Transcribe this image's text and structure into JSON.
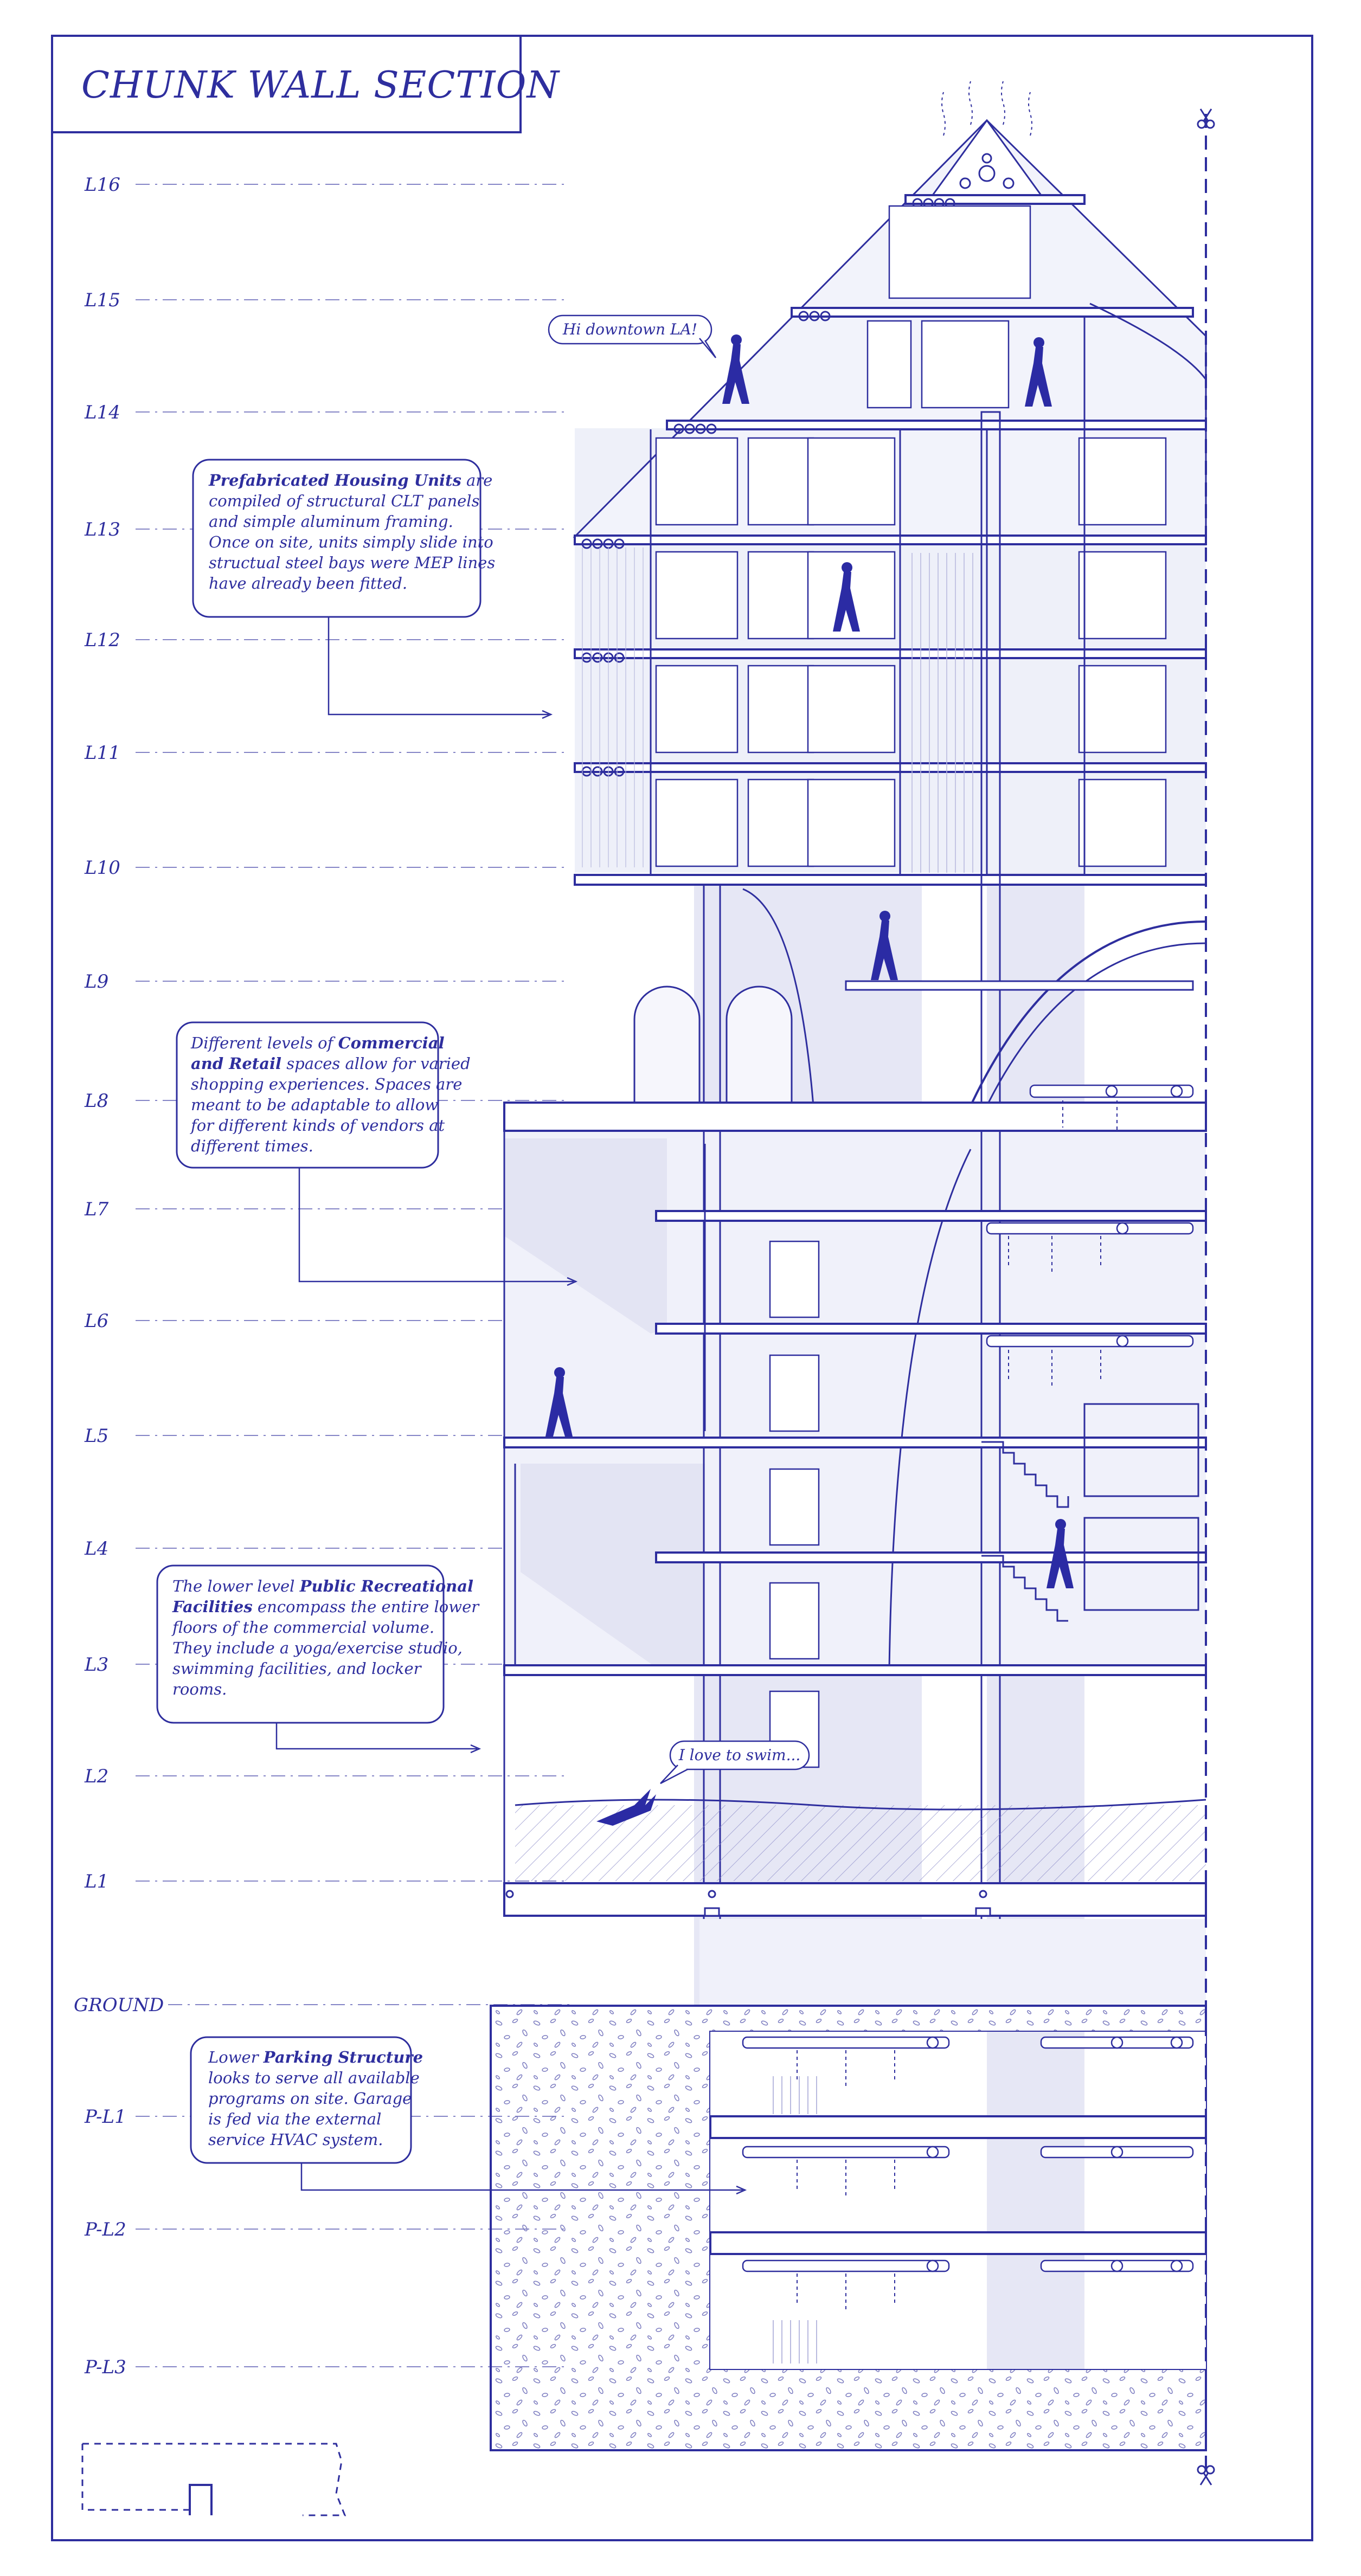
{
  "title": "CHUNK WALL SECTION",
  "colors": {
    "ink": "#2e2e9e",
    "ink_dark": "#2b2ba4",
    "wash": "#e6e7f5",
    "wash_dark": "#d4d6ee",
    "paper": "#ffffff"
  },
  "levels": [
    "L16",
    "L15",
    "L14",
    "L13",
    "L12",
    "L11",
    "L10",
    "L9",
    "L8",
    "L7",
    "L6",
    "L5",
    "L4",
    "L3",
    "L2",
    "L1",
    "GROUND",
    "P-L1",
    "P-L2",
    "P-L3"
  ],
  "notes": {
    "housing": {
      "lines": [
        [
          {
            "t": "Prefabricated Housing Units",
            "b": true
          },
          {
            "t": " are",
            "b": false
          }
        ],
        [
          {
            "t": "compiled of structural CLT panels",
            "b": false
          }
        ],
        [
          {
            "t": "and simple aluminum framing.",
            "b": false
          }
        ],
        [
          {
            "t": "Once on site, units simply slide into",
            "b": false
          }
        ],
        [
          {
            "t": "structual steel bays were MEP lines",
            "b": false
          }
        ],
        [
          {
            "t": "have already been fitted.",
            "b": false
          }
        ]
      ]
    },
    "commercial": {
      "lines": [
        [
          {
            "t": "Different levels of ",
            "b": false
          },
          {
            "t": "Commercial",
            "b": true
          }
        ],
        [
          {
            "t": "and Retail",
            "b": true
          },
          {
            "t": " spaces allow for varied",
            "b": false
          }
        ],
        [
          {
            "t": "shopping experiences. Spaces are",
            "b": false
          }
        ],
        [
          {
            "t": "meant to be adaptable to allow",
            "b": false
          }
        ],
        [
          {
            "t": "for different kinds of vendors at",
            "b": false
          }
        ],
        [
          {
            "t": "different times.",
            "b": false
          }
        ]
      ]
    },
    "recreation": {
      "lines": [
        [
          {
            "t": "The lower level ",
            "b": false
          },
          {
            "t": "Public Recreational",
            "b": true
          }
        ],
        [
          {
            "t": "Facilities",
            "b": true
          },
          {
            "t": " encompass the entire lower",
            "b": false
          }
        ],
        [
          {
            "t": "floors of the commercial volume.",
            "b": false
          }
        ],
        [
          {
            "t": "They include a yoga/exercise studio,",
            "b": false
          }
        ],
        [
          {
            "t": "swimming facilities, and locker",
            "b": false
          }
        ],
        [
          {
            "t": "rooms.",
            "b": false
          }
        ]
      ]
    },
    "parking": {
      "lines": [
        [
          {
            "t": "Lower ",
            "b": false
          },
          {
            "t": "Parking Structure",
            "b": true
          }
        ],
        [
          {
            "t": "looks to serve all available",
            "b": false
          }
        ],
        [
          {
            "t": "programs on site. Garage",
            "b": false
          }
        ],
        [
          {
            "t": "is fed via the external",
            "b": false
          }
        ],
        [
          {
            "t": "service HVAC system.",
            "b": false
          }
        ]
      ]
    }
  },
  "bubbles": {
    "downtown": "Hi downtown LA!",
    "swim": "I love to swim..."
  },
  "icons": {
    "scissors": "scissors-icon",
    "figure": "person-figure-icon",
    "swimmer": "swimmer-figure-icon"
  }
}
